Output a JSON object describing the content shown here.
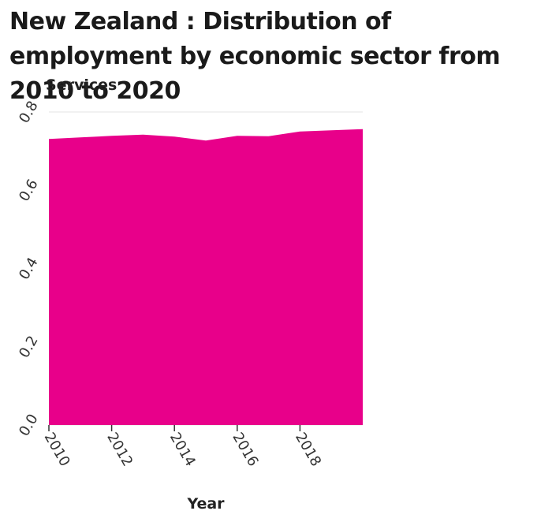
{
  "chart_data": {
    "type": "area",
    "title": "New Zealand : Distribution of employment by economic sector from 2010 to 2020",
    "ylabel": "Services",
    "xlabel": "Year",
    "x": [
      2010,
      2011,
      2012,
      2013,
      2014,
      2015,
      2016,
      2017,
      2018,
      2019,
      2020
    ],
    "series": [
      {
        "values": [
          0.731,
          0.735,
          0.739,
          0.742,
          0.737,
          0.727,
          0.739,
          0.738,
          0.75,
          0.753,
          0.756
        ]
      }
    ],
    "xlim": [
      2010,
      2020
    ],
    "ylim": [
      0,
      0.8
    ],
    "xticks": [
      "2010",
      "2012",
      "2014",
      "2016",
      "2018"
    ],
    "yticks": [
      "0.0",
      "0.2",
      "0.4",
      "0.6",
      "0.8"
    ],
    "grid": "horizontal",
    "color": "#e8008a"
  }
}
